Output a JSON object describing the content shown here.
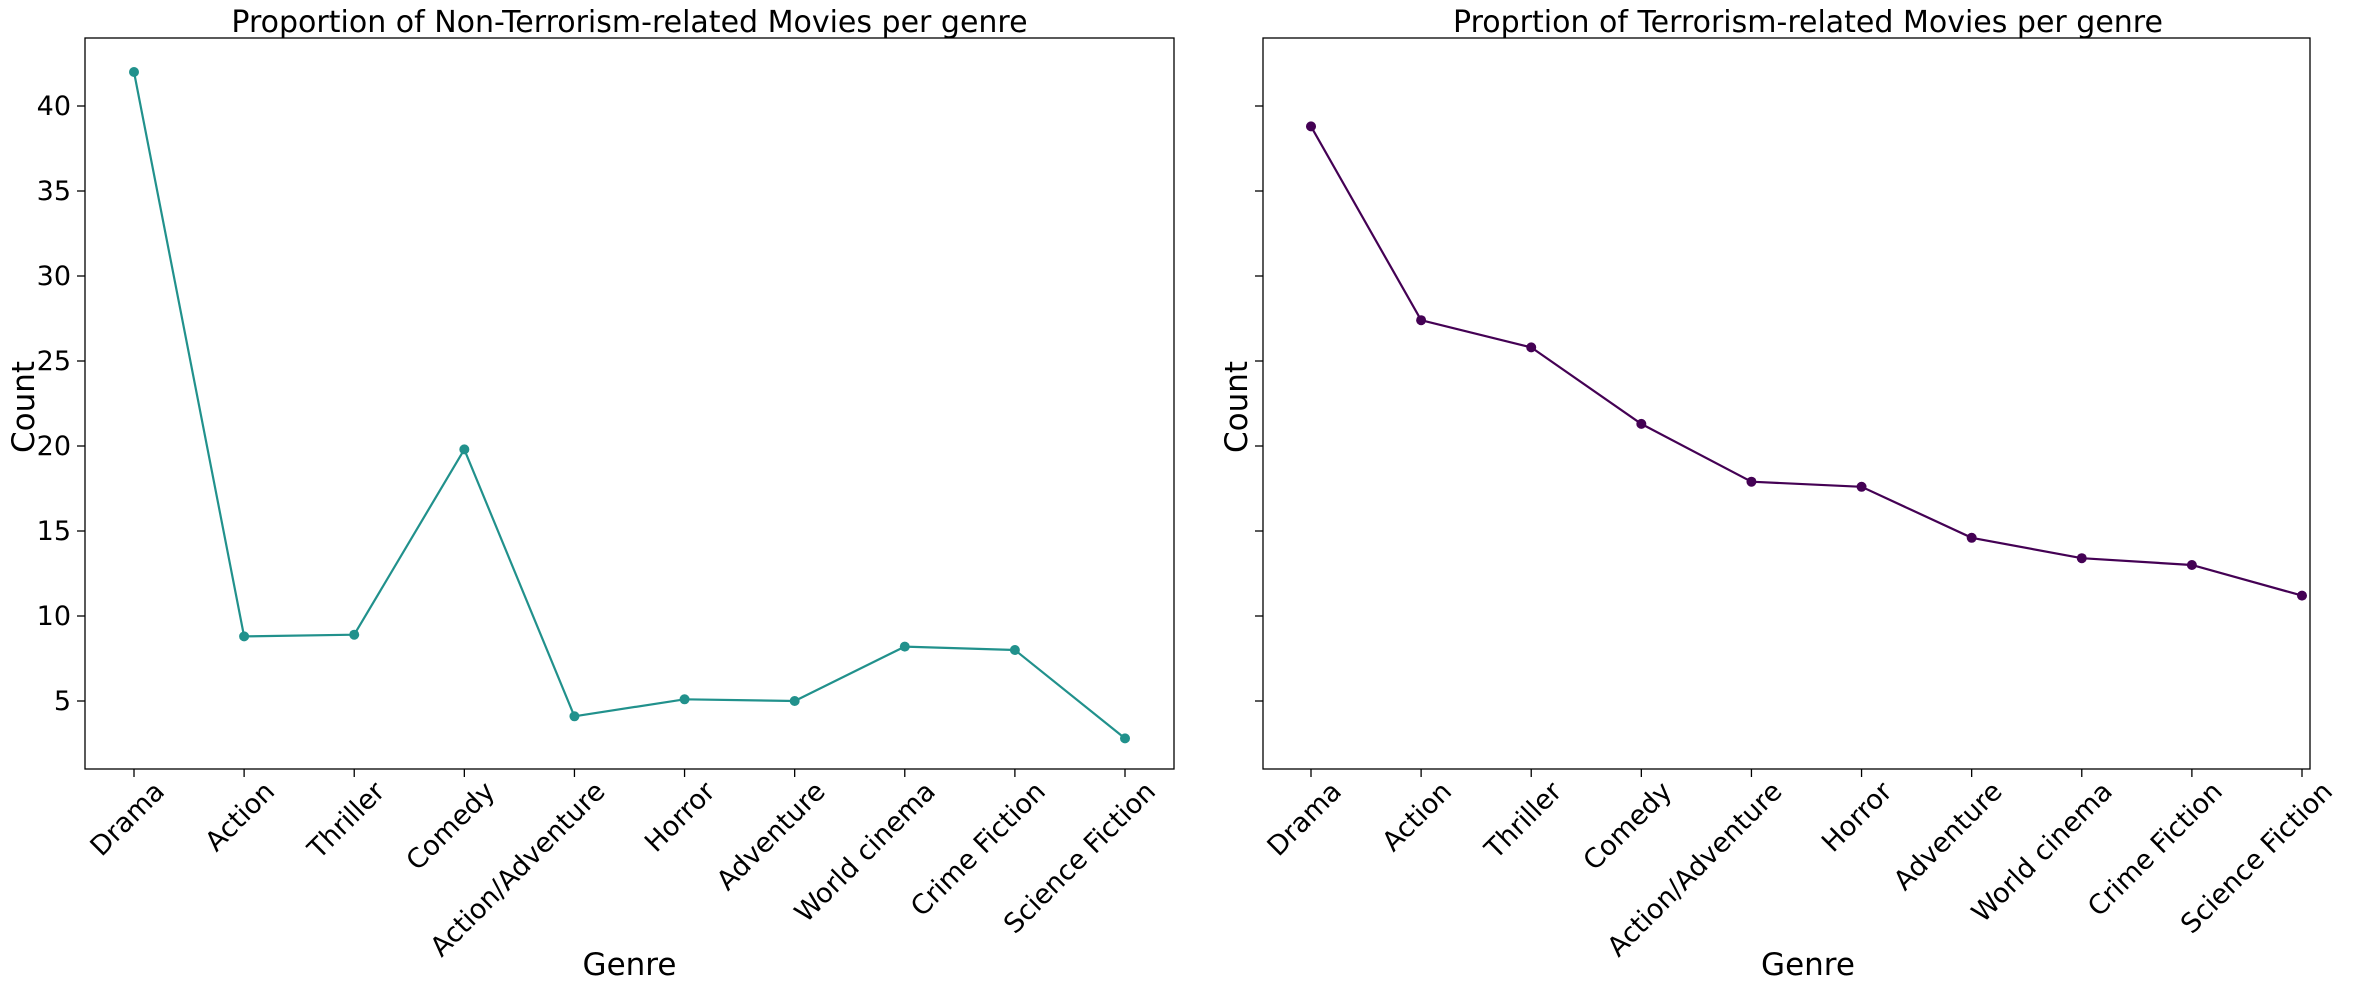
{
  "chart_data": [
    {
      "type": "line",
      "title": "Proportion of Non-Terrorism-related Movies per genre",
      "xlabel": "Genre",
      "ylabel": "Count",
      "categories": [
        "Drama",
        "Action",
        "Thriller",
        "Comedy",
        "Action/Adventure",
        "Horror",
        "Adventure",
        "World cinema",
        "Crime Fiction",
        "Science Fiction"
      ],
      "series": [
        {
          "values": [
            42.0,
            8.8,
            8.9,
            19.8,
            4.1,
            5.1,
            5.0,
            8.2,
            8.0,
            2.8
          ],
          "color": "#21918c"
        }
      ],
      "ylim": [
        1.0,
        44.0
      ],
      "yticks": [
        5,
        10,
        15,
        20,
        25,
        30,
        35,
        40
      ],
      "grid": false
    },
    {
      "type": "line",
      "title": "Proprtion of Terrorism-related Movies per genre",
      "xlabel": "Genre",
      "ylabel": "Count",
      "categories": [
        "Drama",
        "Action",
        "Thriller",
        "Comedy",
        "Action/Adventure",
        "Horror",
        "Adventure",
        "World cinema",
        "Crime Fiction",
        "Science Fiction"
      ],
      "series": [
        {
          "values": [
            38.8,
            27.4,
            25.8,
            21.3,
            17.9,
            17.6,
            14.6,
            13.4,
            13.0,
            11.2
          ],
          "color": "#440154"
        }
      ],
      "ylim": [
        1.0,
        44.0
      ],
      "yticks": [
        5,
        10,
        15,
        20,
        25,
        30,
        35,
        40
      ],
      "show_ytick_labels": false,
      "grid": false
    }
  ]
}
